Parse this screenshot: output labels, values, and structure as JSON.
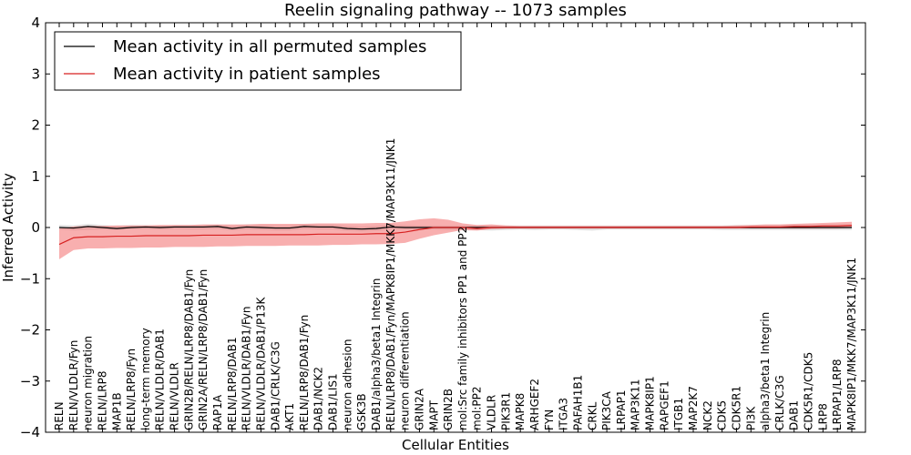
{
  "chart_data": {
    "type": "line",
    "title": "Reelin signaling pathway -- 1073 samples",
    "xlabel": "Cellular Entities",
    "ylabel": "Inferred Activity",
    "ylim": [
      -4,
      4
    ],
    "yticks": [
      -4,
      -3,
      -2,
      -1,
      0,
      1,
      2,
      3,
      4
    ],
    "ytick_labels": [
      "−4",
      "−3",
      "−2",
      "−1",
      "0",
      "1",
      "2",
      "3",
      "4"
    ],
    "legend": {
      "position": "top-left",
      "entries": [
        {
          "label": "Mean activity in all permuted samples",
          "color": "#000000"
        },
        {
          "label": "Mean activity in patient samples",
          "color": "#d62020"
        }
      ]
    },
    "categories": [
      "RELN",
      "RELN/VLDLR/Fyn",
      "neuron migration",
      "RELN/LRP8",
      "MAP1B",
      "RELN/LRP8/Fyn",
      "long-term memory",
      "RELN/VLDLR/DAB1",
      "RELN/VLDLR",
      "GRIN2B/RELN/LRP8/DAB1/Fyn",
      "GRIN2A/RELN/LRP8/DAB1/Fyn",
      "RAP1A",
      "RELN/LRP8/DAB1",
      "RELN/VLDLR/DAB1/Fyn",
      "RELN/VLDLR/DAB1/P13K",
      "DAB1/CRLK/C3G",
      "AKT1",
      "RELN/LRP8/DAB1/Fyn",
      "DAB1/NCK2",
      "DAB1/LIS1",
      "neuron adhesion",
      "GSK3B",
      "DAB1/alpha3/beta1 Integrin",
      "RELN/LRP8/DAB1/Fyn/MAPK8IP1/MKK7/MAP3K11/JNK1",
      "neuron differentiation",
      "GRIN2A",
      "MAPT",
      "GRIN2B",
      "mol:Src family inhibitors PP1 and PP2",
      "mol:PP2",
      "VLDLR",
      "PIK3R1",
      "MAPK8",
      "ARHGEF2",
      "FYN",
      "ITGA3",
      "PAFAH1B1",
      "CRKL",
      "PIK3CA",
      "LRPAP1",
      "MAP3K11",
      "MAPK8IP1",
      "RAPGEF1",
      "ITGB1",
      "MAP2K7",
      "NCK2",
      "CDK5",
      "CDK5R1",
      "PI3K",
      "alpha3/beta1 Integrin",
      "CRLK/C3G",
      "DAB1",
      "CDK5R1/CDK5",
      "LRP8",
      "LRPAP1/LRP8",
      "MAPK8IP1/MKK7/MAP3K11/JNK1"
    ],
    "series": [
      {
        "name": "Mean activity in all permuted samples",
        "color": "#000000",
        "values": [
          0.0,
          -0.01,
          0.02,
          0.0,
          -0.02,
          0.0,
          0.01,
          0.0,
          0.01,
          0.01,
          0.01,
          0.02,
          -0.02,
          0.01,
          0.0,
          -0.01,
          -0.01,
          0.02,
          0.01,
          0.01,
          -0.02,
          -0.03,
          -0.02,
          0.01,
          0.0,
          0.0,
          0.0,
          0.0,
          0.0,
          0.0,
          0.0,
          0.0,
          0.0,
          0.0,
          0.0,
          0.0,
          0.0,
          0.0,
          0.0,
          0.0,
          0.0,
          0.0,
          0.0,
          0.0,
          0.0,
          0.0,
          0.0,
          0.0,
          0.0,
          0.0,
          0.0,
          0.0,
          0.0,
          0.0,
          0.0,
          0.0
        ],
        "lower": [
          -0.04,
          -0.06,
          -0.05,
          -0.04,
          -0.05,
          -0.03,
          -0.03,
          -0.04,
          -0.03,
          -0.04,
          -0.04,
          -0.03,
          -0.06,
          -0.04,
          -0.05,
          -0.06,
          -0.06,
          -0.03,
          -0.04,
          -0.04,
          -0.07,
          -0.08,
          -0.07,
          -0.04,
          -0.04,
          -0.04,
          -0.04,
          -0.05,
          -0.05,
          -0.05,
          -0.06,
          -0.05,
          -0.04,
          -0.05,
          -0.04,
          -0.04,
          -0.05,
          -0.06,
          -0.04,
          -0.04,
          -0.04,
          -0.04,
          -0.04,
          -0.04,
          -0.04,
          -0.04,
          -0.05,
          -0.05,
          -0.05,
          -0.05,
          -0.05,
          -0.05,
          -0.05,
          -0.05,
          -0.05,
          -0.05
        ],
        "upper": [
          0.05,
          0.04,
          0.07,
          0.05,
          0.03,
          0.05,
          0.05,
          0.04,
          0.05,
          0.05,
          0.05,
          0.06,
          0.03,
          0.06,
          0.05,
          0.04,
          0.04,
          0.07,
          0.06,
          0.06,
          0.03,
          0.02,
          0.03,
          0.06,
          0.05,
          0.04,
          0.04,
          0.04,
          0.04,
          0.04,
          0.04,
          0.04,
          0.04,
          0.04,
          0.04,
          0.04,
          0.04,
          0.04,
          0.04,
          0.04,
          0.04,
          0.04,
          0.04,
          0.04,
          0.04,
          0.04,
          0.04,
          0.05,
          0.05,
          0.05,
          0.05,
          0.06,
          0.06,
          0.06,
          0.06,
          0.06
        ]
      },
      {
        "name": "Mean activity in patient samples",
        "color": "#d62020",
        "values": [
          -0.33,
          -0.2,
          -0.18,
          -0.18,
          -0.17,
          -0.17,
          -0.16,
          -0.16,
          -0.16,
          -0.16,
          -0.15,
          -0.15,
          -0.15,
          -0.14,
          -0.14,
          -0.14,
          -0.14,
          -0.14,
          -0.13,
          -0.13,
          -0.13,
          -0.13,
          -0.12,
          -0.12,
          -0.09,
          -0.04,
          0.0,
          0.0,
          0.0,
          -0.02,
          0.0,
          0.0,
          0.0,
          0.0,
          0.0,
          0.0,
          0.0,
          0.0,
          0.0,
          0.0,
          0.0,
          0.0,
          0.0,
          0.0,
          0.0,
          0.0,
          0.0,
          0.0,
          0.01,
          0.01,
          0.01,
          0.02,
          0.02,
          0.03,
          0.03,
          0.04
        ],
        "lower": [
          -0.62,
          -0.44,
          -0.41,
          -0.41,
          -0.4,
          -0.4,
          -0.39,
          -0.39,
          -0.38,
          -0.38,
          -0.38,
          -0.37,
          -0.37,
          -0.36,
          -0.36,
          -0.36,
          -0.35,
          -0.35,
          -0.35,
          -0.34,
          -0.34,
          -0.33,
          -0.33,
          -0.32,
          -0.3,
          -0.22,
          -0.15,
          -0.1,
          -0.05,
          -0.06,
          -0.03,
          -0.02,
          -0.02,
          -0.02,
          -0.02,
          -0.02,
          -0.02,
          -0.02,
          -0.02,
          -0.02,
          -0.02,
          -0.02,
          -0.02,
          -0.02,
          -0.02,
          -0.02,
          -0.02,
          -0.02,
          -0.02,
          -0.02,
          -0.02,
          -0.02,
          -0.02,
          -0.02,
          -0.02,
          -0.01
        ],
        "upper": [
          -0.02,
          0.02,
          0.03,
          0.03,
          0.04,
          0.04,
          0.04,
          0.05,
          0.05,
          0.05,
          0.06,
          0.06,
          0.06,
          0.06,
          0.07,
          0.07,
          0.07,
          0.07,
          0.08,
          0.08,
          0.08,
          0.08,
          0.09,
          0.09,
          0.12,
          0.16,
          0.18,
          0.15,
          0.08,
          0.05,
          0.06,
          0.04,
          0.03,
          0.03,
          0.03,
          0.03,
          0.03,
          0.03,
          0.03,
          0.03,
          0.03,
          0.03,
          0.03,
          0.03,
          0.03,
          0.03,
          0.03,
          0.04,
          0.05,
          0.06,
          0.06,
          0.07,
          0.08,
          0.09,
          0.1,
          0.11
        ]
      }
    ]
  }
}
